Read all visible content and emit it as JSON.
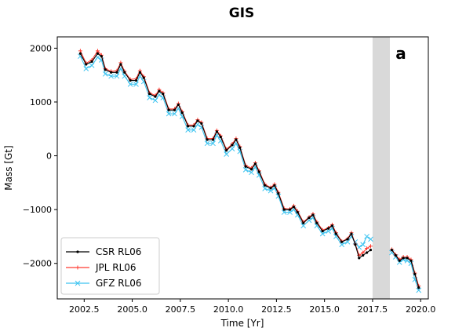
{
  "chart_data": {
    "type": "line",
    "title": "GIS",
    "panel_label": "a",
    "xlabel": "Time [Yr]",
    "ylabel": "Mass [Gt]",
    "xlim": [
      2001.1,
      2020.4
    ],
    "ylim": [
      -2660,
      2210
    ],
    "x_ticks": [
      2002.5,
      2005.0,
      2007.5,
      2010.0,
      2012.5,
      2015.0,
      2017.5,
      2020.0
    ],
    "x_tick_labels": [
      "2002.5",
      "2005.0",
      "2007.5",
      "2010.0",
      "2012.5",
      "2015.0",
      "2017.5",
      "2020.0"
    ],
    "y_ticks": [
      2000,
      1000,
      0,
      -1000,
      -2000
    ],
    "y_tick_labels": [
      "2000",
      "1000",
      "0",
      "−1000",
      "−2000"
    ],
    "shaded_gap": [
      2017.5,
      2018.4
    ],
    "shaded_color": "#d9d9d9",
    "legend_position": "lower-left",
    "series": [
      {
        "name": "CSR RL06",
        "color": "#000000",
        "marker": "dot",
        "x": [
          2002.3,
          2002.6,
          2002.9,
          2003.2,
          2003.4,
          2003.6,
          2003.9,
          2004.2,
          2004.4,
          2004.6,
          2004.9,
          2005.2,
          2005.4,
          2005.6,
          2005.9,
          2006.2,
          2006.4,
          2006.6,
          2006.9,
          2007.2,
          2007.4,
          2007.6,
          2007.9,
          2008.2,
          2008.4,
          2008.6,
          2008.9,
          2009.2,
          2009.4,
          2009.6,
          2009.9,
          2010.2,
          2010.4,
          2010.6,
          2010.9,
          2011.2,
          2011.4,
          2011.6,
          2011.9,
          2012.2,
          2012.4,
          2012.6,
          2012.9,
          2013.2,
          2013.4,
          2013.6,
          2013.9,
          2014.2,
          2014.4,
          2014.6,
          2014.9,
          2015.2,
          2015.4,
          2015.6,
          2015.9,
          2016.2,
          2016.4,
          2016.6,
          2016.8,
          2017.0,
          2017.2,
          2017.4,
          2018.5,
          2018.7,
          2018.9,
          2019.1,
          2019.3,
          2019.5,
          2019.7,
          2019.9
        ],
        "y": [
          1900,
          1700,
          1750,
          1900,
          1850,
          1600,
          1550,
          1550,
          1700,
          1550,
          1400,
          1400,
          1550,
          1450,
          1150,
          1100,
          1200,
          1150,
          850,
          850,
          950,
          800,
          550,
          550,
          650,
          600,
          300,
          300,
          450,
          350,
          100,
          200,
          300,
          150,
          -200,
          -250,
          -150,
          -300,
          -550,
          -600,
          -550,
          -700,
          -1000,
          -1000,
          -950,
          -1050,
          -1250,
          -1150,
          -1100,
          -1250,
          -1400,
          -1350,
          -1300,
          -1450,
          -1600,
          -1550,
          -1450,
          -1650,
          -1900,
          -1850,
          -1800,
          -1750,
          -1750,
          -1850,
          -1950,
          -1900,
          -1900,
          -1950,
          -2200,
          -2450
        ]
      },
      {
        "name": "JPL RL06",
        "color": "#ff3b30",
        "marker": "plus",
        "x": [
          2002.3,
          2002.6,
          2002.9,
          2003.2,
          2003.4,
          2003.6,
          2003.9,
          2004.2,
          2004.4,
          2004.6,
          2004.9,
          2005.2,
          2005.4,
          2005.6,
          2005.9,
          2006.2,
          2006.4,
          2006.6,
          2006.9,
          2007.2,
          2007.4,
          2007.6,
          2007.9,
          2008.2,
          2008.4,
          2008.6,
          2008.9,
          2009.2,
          2009.4,
          2009.6,
          2009.9,
          2010.2,
          2010.4,
          2010.6,
          2010.9,
          2011.2,
          2011.4,
          2011.6,
          2011.9,
          2012.2,
          2012.4,
          2012.6,
          2012.9,
          2013.2,
          2013.4,
          2013.6,
          2013.9,
          2014.2,
          2014.4,
          2014.6,
          2014.9,
          2015.2,
          2015.4,
          2015.6,
          2015.9,
          2016.2,
          2016.4,
          2016.6,
          2016.8,
          2017.0,
          2017.2,
          2017.4,
          2018.5,
          2018.7,
          2018.9,
          2019.1,
          2019.3,
          2019.5,
          2019.7,
          2019.9
        ],
        "y": [
          1950,
          1720,
          1780,
          1950,
          1870,
          1620,
          1570,
          1580,
          1730,
          1570,
          1420,
          1430,
          1580,
          1470,
          1170,
          1120,
          1230,
          1170,
          870,
          870,
          970,
          820,
          570,
          570,
          670,
          620,
          320,
          320,
          470,
          370,
          120,
          220,
          320,
          170,
          -180,
          -230,
          -130,
          -280,
          -530,
          -590,
          -530,
          -680,
          -980,
          -990,
          -930,
          -1030,
          -1230,
          -1140,
          -1080,
          -1230,
          -1380,
          -1340,
          -1280,
          -1430,
          -1590,
          -1540,
          -1430,
          -1640,
          -1850,
          -1800,
          -1720,
          -1680,
          -1740,
          -1840,
          -1930,
          -1880,
          -1880,
          -1930,
          -2180,
          -2420
        ]
      },
      {
        "name": "GFZ RL06",
        "color": "#3ec4f0",
        "marker": "x",
        "x": [
          2002.3,
          2002.6,
          2002.9,
          2003.2,
          2003.4,
          2003.6,
          2003.9,
          2004.2,
          2004.4,
          2004.6,
          2004.9,
          2005.2,
          2005.4,
          2005.6,
          2005.9,
          2006.2,
          2006.4,
          2006.6,
          2006.9,
          2007.2,
          2007.4,
          2007.6,
          2007.9,
          2008.2,
          2008.4,
          2008.6,
          2008.9,
          2009.2,
          2009.4,
          2009.6,
          2009.9,
          2010.2,
          2010.4,
          2010.6,
          2010.9,
          2011.2,
          2011.4,
          2011.6,
          2011.9,
          2012.2,
          2012.4,
          2012.6,
          2012.9,
          2013.2,
          2013.4,
          2013.6,
          2013.9,
          2014.2,
          2014.4,
          2014.6,
          2014.9,
          2015.2,
          2015.4,
          2015.6,
          2015.9,
          2016.2,
          2016.4,
          2016.6,
          2016.8,
          2017.0,
          2017.2,
          2017.4,
          2018.5,
          2018.7,
          2018.9,
          2019.1,
          2019.3,
          2019.5,
          2019.7,
          2019.9
        ],
        "y": [
          1850,
          1620,
          1680,
          1830,
          1780,
          1520,
          1480,
          1480,
          1620,
          1480,
          1330,
          1330,
          1480,
          1380,
          1080,
          1030,
          1130,
          1080,
          780,
          780,
          880,
          730,
          480,
          480,
          580,
          530,
          230,
          230,
          380,
          280,
          30,
          130,
          230,
          80,
          -260,
          -310,
          -210,
          -360,
          -610,
          -650,
          -600,
          -750,
          -1050,
          -1050,
          -1000,
          -1100,
          -1300,
          -1200,
          -1150,
          -1300,
          -1450,
          -1400,
          -1350,
          -1500,
          -1650,
          -1600,
          -1500,
          -1600,
          -1700,
          -1650,
          -1500,
          -1550,
          -1800,
          -1880,
          -1980,
          -1930,
          -1950,
          -2000,
          -2300,
          -2500
        ]
      }
    ]
  }
}
